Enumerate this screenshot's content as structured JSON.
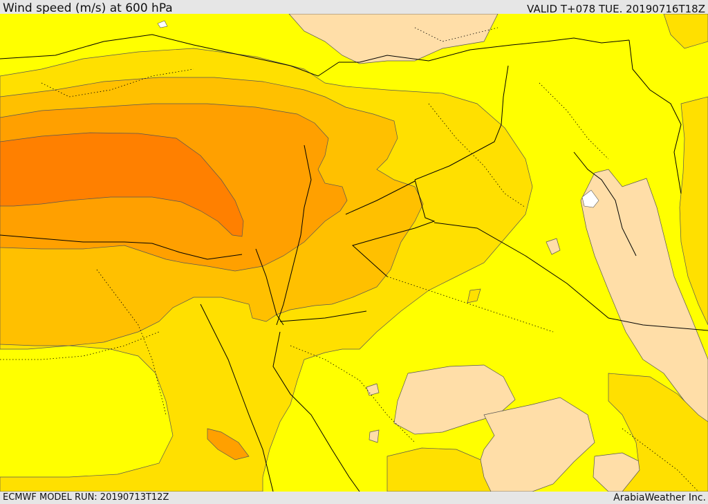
{
  "header": {
    "title": "Wind speed (m/s) at 600 hPa",
    "valid": "VALID T+078 TUE. 20190716T18Z"
  },
  "footer": {
    "model_run": "ECMWF MODEL RUN: 20190713T12Z",
    "credit": "ArabiaWeather Inc."
  },
  "colors": {
    "band_0_5": "#ffdea8",
    "band_5_10": "#ffff00",
    "band_10_15": "#ffe000",
    "band_15_20": "#ffc000",
    "band_20_25": "#ffa000",
    "band_25_30": "#ff8000",
    "calm": "#ffffff",
    "contour": "#555555",
    "border": "#000000"
  }
}
